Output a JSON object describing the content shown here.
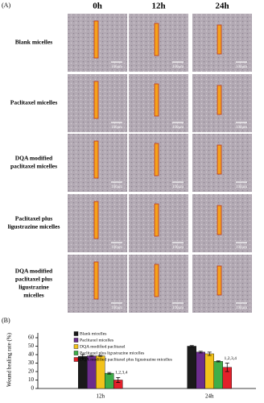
{
  "panel_a": {
    "label": "(A)",
    "columns": [
      "0h",
      "12h",
      "24h"
    ],
    "rows": [
      [
        "Blank micelles"
      ],
      [
        "Paclitaxel micelles"
      ],
      [
        "DQA modified",
        "paclitaxel micelles"
      ],
      [
        "Paclitaxel plus",
        "ligustrazine micelles"
      ],
      [
        "DQA modified",
        "paclitaxel plus",
        "ligustrazine",
        "micelles"
      ]
    ],
    "scale_label": "100μm"
  },
  "chart_data": {
    "type": "bar",
    "panel_label": "(B)",
    "y_label": "Wound healing rate (%)",
    "categories": [
      "12h",
      "24h"
    ],
    "series": [
      {
        "name": "Blank micelles",
        "color": "#1a1a1a",
        "values": [
          38,
          50
        ],
        "errors": [
          2,
          0.7
        ]
      },
      {
        "name": "Paclitaxel micelles",
        "color": "#6b2d8c",
        "values": [
          38.5,
          43
        ],
        "errors": [
          0.6,
          1
        ]
      },
      {
        "name": "DQA modified paclitaxel",
        "color": "#f2c21b",
        "values": [
          38.5,
          41
        ],
        "errors": [
          0.6,
          2
        ]
      },
      {
        "name": "Paclitaxel plus ligustrazine micelles",
        "color": "#3fae49",
        "values": [
          18,
          32
        ],
        "errors": [
          1,
          0.6
        ]
      },
      {
        "name": "DQA modified paclitaxel plus ligustrazine micelles",
        "color": "#e3202a",
        "values": [
          10,
          25
        ],
        "errors": [
          3,
          5
        ],
        "annotations": [
          "1,2,3,4",
          "1,2,3,4"
        ]
      }
    ],
    "ylim": [
      0,
      60
    ],
    "yticks": [
      0,
      10,
      20,
      30,
      40,
      50,
      60
    ]
  }
}
